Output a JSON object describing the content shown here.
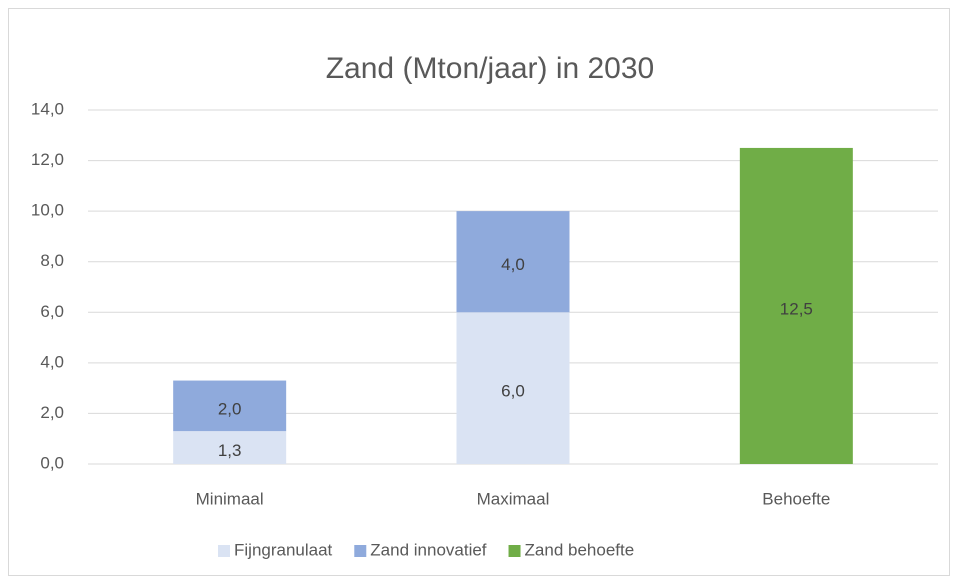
{
  "chart_data": {
    "type": "stacked_bar",
    "title": "Zand (Mton/jaar) in 2030",
    "categories": [
      "Minimaal",
      "Maximaal",
      "Behoefte"
    ],
    "series": [
      {
        "name": "Fijngranulaat",
        "color": "#dae3f3",
        "values": [
          1.3,
          6.0,
          null
        ],
        "value_labels": [
          "1,3",
          "6,0",
          null
        ]
      },
      {
        "name": "Zand innovatief",
        "color": "#8faadc",
        "values": [
          2.0,
          4.0,
          null
        ],
        "value_labels": [
          "2,0",
          "4,0",
          null
        ]
      },
      {
        "name": "Zand behoefte",
        "color": "#70ad47",
        "values": [
          null,
          null,
          12.5
        ],
        "value_labels": [
          null,
          null,
          "12,5"
        ]
      }
    ],
    "ylim": [
      0,
      14
    ],
    "yticks": [
      {
        "value": 0,
        "label": "0,0"
      },
      {
        "value": 2,
        "label": "2,0"
      },
      {
        "value": 4,
        "label": "4,0"
      },
      {
        "value": 6,
        "label": "6,0"
      },
      {
        "value": 8,
        "label": "8,0"
      },
      {
        "value": 10,
        "label": "10,0"
      },
      {
        "value": 12,
        "label": "12,0"
      },
      {
        "value": 14,
        "label": "14,0"
      }
    ],
    "grid": true,
    "legend": "bottom"
  }
}
